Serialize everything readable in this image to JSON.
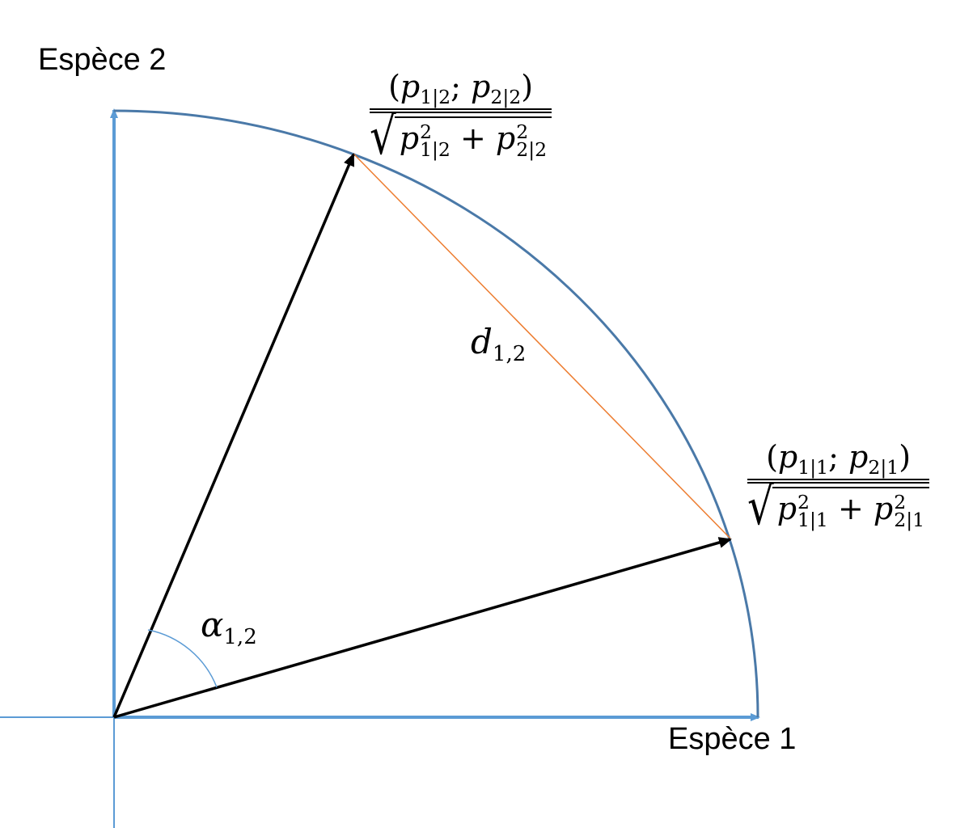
{
  "axes": {
    "x_label": "Espèce 1",
    "y_label": "Espèce 2"
  },
  "symbols": {
    "distance": {
      "base": "d",
      "sub": "1,2"
    },
    "angle": {
      "base": "α",
      "sub": "1,2"
    }
  },
  "points": {
    "point_2": {
      "num_open": "(",
      "p_a": "p",
      "p_a_sub": "1|2",
      "sep": "; ",
      "p_b": "p",
      "p_b_sub": "2|2",
      "num_close": ")",
      "den_a": "p",
      "den_a_sub": "1|2",
      "den_a_sup": "2",
      "plus": " + ",
      "den_b": "p",
      "den_b_sub": "2|2",
      "den_b_sup": "2",
      "radical": "√"
    },
    "point_1": {
      "num_open": "(",
      "p_a": "p",
      "p_a_sub": "1|1",
      "sep": "; ",
      "p_b": "p",
      "p_b_sub": "2|1",
      "num_close": ")",
      "den_a": "p",
      "den_a_sub": "1|1",
      "den_a_sup": "2",
      "plus": " + ",
      "den_b": "p",
      "den_b_sub": "2|1",
      "den_b_sup": "2",
      "radical": "√"
    }
  },
  "colors": {
    "axis": "#5b9bd5",
    "arc": "#4a79a8",
    "vector": "#000000",
    "chord": "#ed7d31",
    "angle_arc": "#5b9bd5"
  }
}
